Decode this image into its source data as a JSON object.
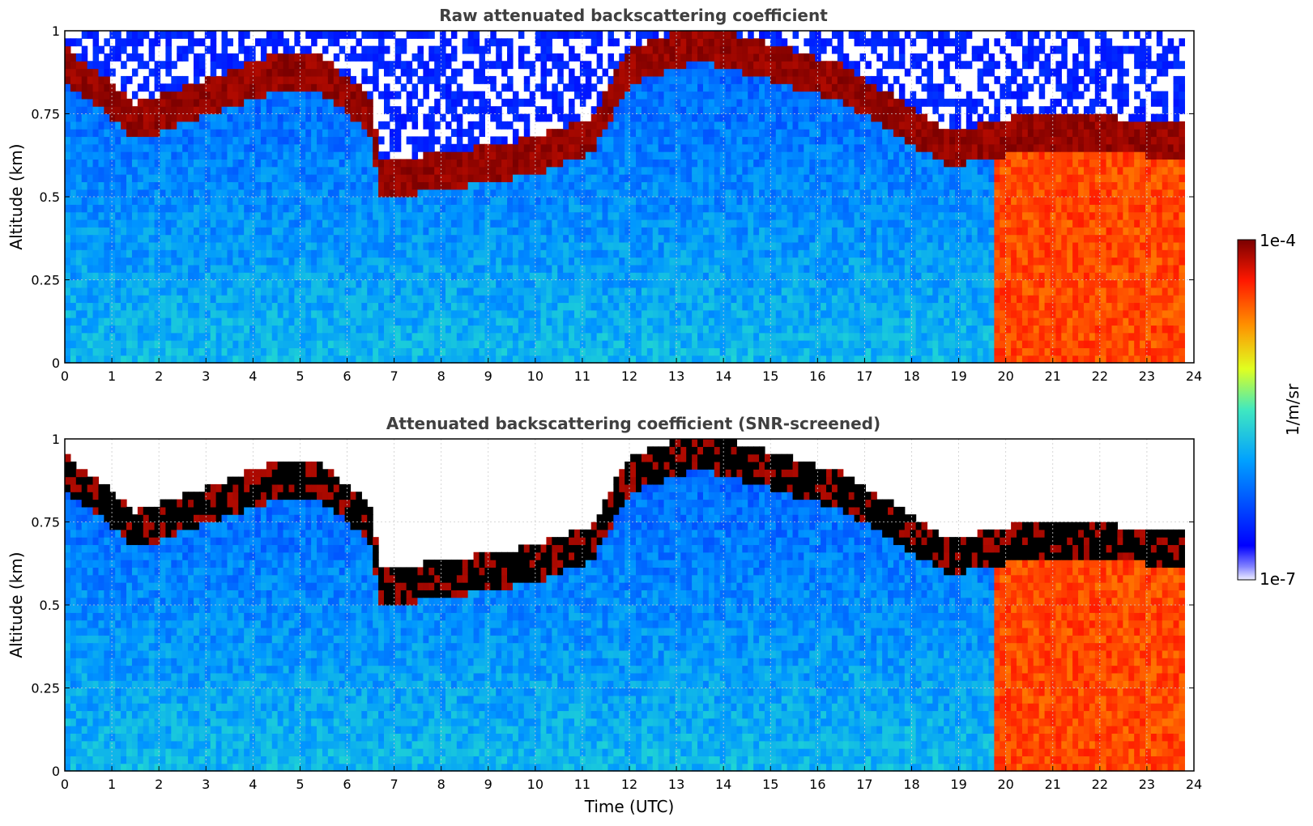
{
  "chart_data": [
    {
      "type": "heatmap",
      "title": "Raw attenuated backscattering coefficient",
      "xlabel": "",
      "ylabel": "Altitude (km)",
      "xlim": [
        0,
        24
      ],
      "ylim": [
        0,
        1
      ],
      "x_ticks": [
        "0",
        "1",
        "2",
        "3",
        "4",
        "5",
        "6",
        "7",
        "8",
        "9",
        "10",
        "11",
        "12",
        "13",
        "14",
        "15",
        "16",
        "17",
        "18",
        "19",
        "20",
        "21",
        "22",
        "23",
        "24"
      ],
      "y_ticks": [
        "0",
        "0.25",
        "0.5",
        "0.75",
        "1"
      ],
      "grid": true,
      "features": {
        "cloud_top_km": [
          {
            "t": 0,
            "v": 0.9
          },
          {
            "t": 0.8,
            "v": 0.82
          },
          {
            "t": 1.5,
            "v": 0.73
          },
          {
            "t": 2.5,
            "v": 0.78
          },
          {
            "t": 3.5,
            "v": 0.83
          },
          {
            "t": 4.5,
            "v": 0.88
          },
          {
            "t": 5.5,
            "v": 0.87
          },
          {
            "t": 6.5,
            "v": 0.75
          },
          {
            "t": 6.7,
            "v": 0.56
          },
          {
            "t": 8,
            "v": 0.58
          },
          {
            "t": 10,
            "v": 0.63
          },
          {
            "t": 11.2,
            "v": 0.69
          },
          {
            "t": 12,
            "v": 0.9
          },
          {
            "t": 13.5,
            "v": 0.97
          },
          {
            "t": 16.5,
            "v": 0.85
          },
          {
            "t": 18.8,
            "v": 0.65
          },
          {
            "t": 20.5,
            "v": 0.7
          },
          {
            "t": 23.8,
            "v": 0.68
          }
        ],
        "precipitation_start_utc": 19.8,
        "data_end_utc": 23.8
      }
    },
    {
      "type": "heatmap",
      "title": "Attenuated backscattering coefficient (SNR-screened)",
      "xlabel": "Time (UTC)",
      "ylabel": "Altitude (km)",
      "xlim": [
        0,
        24
      ],
      "ylim": [
        0,
        1
      ],
      "x_ticks": [
        "0",
        "1",
        "2",
        "3",
        "4",
        "5",
        "6",
        "7",
        "8",
        "9",
        "10",
        "11",
        "12",
        "13",
        "14",
        "15",
        "16",
        "17",
        "18",
        "19",
        "20",
        "21",
        "22",
        "23",
        "24"
      ],
      "y_ticks": [
        "0",
        "0.25",
        "0.5",
        "0.75",
        "1"
      ],
      "grid": true
    }
  ],
  "colorbar": {
    "label": "1/m/sr",
    "max_label": "1e-4",
    "min_label": "1e-7",
    "colormap": "jet",
    "scale": "log"
  }
}
